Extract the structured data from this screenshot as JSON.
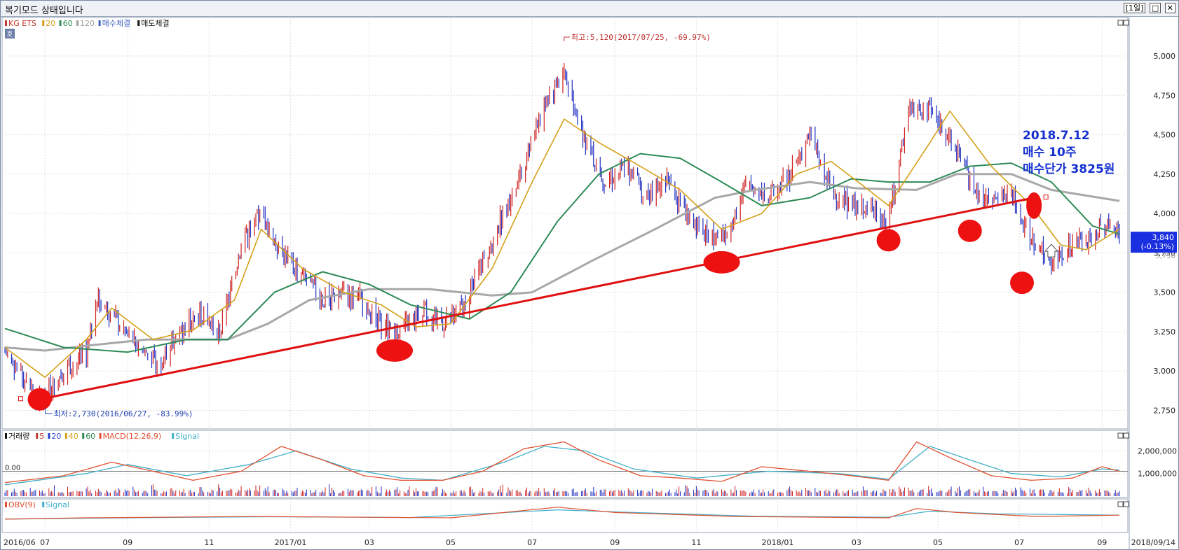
{
  "window": {
    "title": "복기모드 상태입니다",
    "period_button": "[1일]",
    "restore_icon": "restore-icon",
    "close_icon": "close-icon"
  },
  "price_legend": [
    {
      "label": "KG ETS",
      "color": "#c0392b"
    },
    {
      "label": "20",
      "color": "#d4a017"
    },
    {
      "label": "60",
      "color": "#2e8b57"
    },
    {
      "label": "120",
      "color": "#a0a0a0"
    },
    {
      "label": "매수체결",
      "color": "#4060c0"
    },
    {
      "label": "매도체결",
      "color": "#111111"
    }
  ],
  "price_legend_extra": "호",
  "volume_legend": [
    {
      "label": "거래량",
      "color": "#111111"
    },
    {
      "label": "5",
      "color": "#c0392b"
    },
    {
      "label": "20",
      "color": "#2b3fd6"
    },
    {
      "label": "40",
      "color": "#d4a017"
    },
    {
      "label": "60",
      "color": "#2e8b57"
    },
    {
      "label": "MACD(12,26,9)",
      "color": "#e05030"
    },
    {
      "label": "Signal",
      "color": "#40b0c8"
    }
  ],
  "obv_legend": [
    {
      "label": "OBV(9)",
      "color": "#e05030"
    },
    {
      "label": "Signal",
      "color": "#40b0c8"
    }
  ],
  "macd_zero_label": "0.00",
  "chart_data": {
    "type": "candlestick",
    "date_range": [
      "2016/06/01",
      "2018/09/14"
    ],
    "ylim": [
      2650,
      5200
    ],
    "yticks": [
      2750,
      3000,
      3250,
      3500,
      3750,
      4000,
      4250,
      4500,
      4750,
      5000
    ],
    "ytick_labels": [
      "2,750",
      "3,000",
      "3,250",
      "3,500",
      "3,750",
      "4,000",
      "4,250",
      "4,500",
      "4,750",
      "5,000"
    ],
    "x_labels": [
      {
        "date": "2016/06/01",
        "label": "2016/06"
      },
      {
        "date": "2016/07/01",
        "label": "07"
      },
      {
        "date": "2016/09/01",
        "label": "09"
      },
      {
        "date": "2016/11/01",
        "label": "11"
      },
      {
        "date": "2017/01/01",
        "label": "2017/01"
      },
      {
        "date": "2017/03/01",
        "label": "03"
      },
      {
        "date": "2017/05/01",
        "label": "05"
      },
      {
        "date": "2017/07/01",
        "label": "07"
      },
      {
        "date": "2017/09/01",
        "label": "09"
      },
      {
        "date": "2017/11/01",
        "label": "11"
      },
      {
        "date": "2018/01/01",
        "label": "2018/01"
      },
      {
        "date": "2018/03/01",
        "label": "03"
      },
      {
        "date": "2018/05/01",
        "label": "05"
      },
      {
        "date": "2018/07/01",
        "label": "07"
      },
      {
        "date": "2018/09/01",
        "label": "09"
      },
      {
        "date": "2018/09/14",
        "label": "2018/09/14"
      }
    ],
    "price_path": [
      [
        "2016/06/01",
        3120
      ],
      [
        "2016/06/27",
        2800
      ],
      [
        "2016/07/15",
        3000
      ],
      [
        "2016/08/01",
        3100
      ],
      [
        "2016/08/10",
        3450
      ],
      [
        "2016/08/25",
        3300
      ],
      [
        "2016/09/10",
        3150
      ],
      [
        "2016/09/25",
        3050
      ],
      [
        "2016/10/10",
        3250
      ],
      [
        "2016/10/25",
        3350
      ],
      [
        "2016/11/10",
        3250
      ],
      [
        "2016/11/25",
        3800
      ],
      [
        "2016/12/10",
        4000
      ],
      [
        "2016/12/25",
        3750
      ],
      [
        "2017/01/10",
        3600
      ],
      [
        "2017/01/25",
        3450
      ],
      [
        "2017/02/10",
        3500
      ],
      [
        "2017/02/25",
        3450
      ],
      [
        "2017/03/10",
        3300
      ],
      [
        "2017/03/25",
        3250
      ],
      [
        "2017/04/10",
        3400
      ],
      [
        "2017/04/25",
        3300
      ],
      [
        "2017/05/10",
        3400
      ],
      [
        "2017/05/25",
        3700
      ],
      [
        "2017/06/10",
        4000
      ],
      [
        "2017/06/25",
        4300
      ],
      [
        "2017/07/10",
        4700
      ],
      [
        "2017/07/25",
        4900
      ],
      [
        "2017/08/10",
        4450
      ],
      [
        "2017/08/25",
        4200
      ],
      [
        "2017/09/10",
        4300
      ],
      [
        "2017/09/25",
        4100
      ],
      [
        "2017/10/10",
        4200
      ],
      [
        "2017/10/25",
        4000
      ],
      [
        "2017/11/10",
        3850
      ],
      [
        "2017/11/25",
        3900
      ],
      [
        "2017/12/10",
        4200
      ],
      [
        "2017/12/25",
        4100
      ],
      [
        "2018/01/10",
        4250
      ],
      [
        "2018/01/25",
        4500
      ],
      [
        "2018/02/10",
        4150
      ],
      [
        "2018/02/25",
        4050
      ],
      [
        "2018/03/10",
        4050
      ],
      [
        "2018/03/25",
        3950
      ],
      [
        "2018/04/10",
        4700
      ],
      [
        "2018/04/25",
        4650
      ],
      [
        "2018/05/10",
        4500
      ],
      [
        "2018/05/25",
        4200
      ],
      [
        "2018/06/10",
        4050
      ],
      [
        "2018/06/25",
        4150
      ],
      [
        "2018/07/05",
        3900
      ],
      [
        "2018/07/15",
        3800
      ],
      [
        "2018/07/25",
        3700
      ],
      [
        "2018/08/10",
        3800
      ],
      [
        "2018/08/25",
        3850
      ],
      [
        "2018/09/05",
        3950
      ],
      [
        "2018/09/14",
        3840
      ]
    ],
    "ma20": [
      [
        "2016/06/01",
        3150
      ],
      [
        "2016/07/01",
        2960
      ],
      [
        "2016/08/01",
        3200
      ],
      [
        "2016/08/20",
        3400
      ],
      [
        "2016/09/20",
        3200
      ],
      [
        "2016/10/20",
        3260
      ],
      [
        "2016/11/20",
        3450
      ],
      [
        "2016/12/10",
        3900
      ],
      [
        "2017/01/10",
        3650
      ],
      [
        "2017/02/10",
        3500
      ],
      [
        "2017/03/10",
        3420
      ],
      [
        "2017/04/05",
        3280
      ],
      [
        "2017/05/01",
        3300
      ],
      [
        "2017/06/01",
        3650
      ],
      [
        "2017/07/01",
        4200
      ],
      [
        "2017/07/25",
        4600
      ],
      [
        "2017/08/20",
        4450
      ],
      [
        "2017/09/20",
        4300
      ],
      [
        "2017/10/20",
        4150
      ],
      [
        "2017/11/20",
        3900
      ],
      [
        "2017/12/20",
        4000
      ],
      [
        "2018/01/15",
        4250
      ],
      [
        "2018/02/10",
        4330
      ],
      [
        "2018/03/10",
        4150
      ],
      [
        "2018/03/25",
        4050
      ],
      [
        "2018/04/25",
        4450
      ],
      [
        "2018/05/10",
        4650
      ],
      [
        "2018/06/10",
        4300
      ],
      [
        "2018/07/10",
        4050
      ],
      [
        "2018/08/01",
        3800
      ],
      [
        "2018/08/20",
        3770
      ],
      [
        "2018/09/14",
        3900
      ]
    ],
    "ma60": [
      [
        "2016/06/01",
        3270
      ],
      [
        "2016/07/15",
        3150
      ],
      [
        "2016/09/01",
        3120
      ],
      [
        "2016/10/15",
        3200
      ],
      [
        "2016/11/15",
        3200
      ],
      [
        "2016/12/20",
        3500
      ],
      [
        "2017/01/25",
        3630
      ],
      [
        "2017/03/01",
        3550
      ],
      [
        "2017/04/01",
        3420
      ],
      [
        "2017/05/15",
        3330
      ],
      [
        "2017/06/15",
        3500
      ],
      [
        "2017/07/20",
        3950
      ],
      [
        "2017/08/20",
        4250
      ],
      [
        "2017/09/20",
        4380
      ],
      [
        "2017/10/20",
        4350
      ],
      [
        "2017/11/20",
        4200
      ],
      [
        "2017/12/20",
        4050
      ],
      [
        "2018/01/25",
        4100
      ],
      [
        "2018/02/25",
        4220
      ],
      [
        "2018/03/25",
        4200
      ],
      [
        "2018/04/25",
        4200
      ],
      [
        "2018/05/25",
        4300
      ],
      [
        "2018/06/25",
        4320
      ],
      [
        "2018/07/25",
        4200
      ],
      [
        "2018/08/25",
        3920
      ],
      [
        "2018/09/14",
        3870
      ]
    ],
    "ma120": [
      [
        "2016/06/01",
        3150
      ],
      [
        "2016/07/01",
        3130
      ],
      [
        "2016/08/01",
        3160
      ],
      [
        "2016/09/15",
        3200
      ],
      [
        "2016/11/15",
        3200
      ],
      [
        "2016/12/15",
        3300
      ],
      [
        "2017/01/15",
        3450
      ],
      [
        "2017/03/01",
        3520
      ],
      [
        "2017/04/15",
        3520
      ],
      [
        "2017/06/01",
        3480
      ],
      [
        "2017/07/01",
        3500
      ],
      [
        "2017/08/15",
        3700
      ],
      [
        "2017/10/01",
        3900
      ],
      [
        "2017/11/15",
        4100
      ],
      [
        "2017/12/15",
        4150
      ],
      [
        "2018/01/25",
        4200
      ],
      [
        "2018/03/01",
        4160
      ],
      [
        "2018/04/15",
        4150
      ],
      [
        "2018/05/15",
        4250
      ],
      [
        "2018/06/25",
        4250
      ],
      [
        "2018/07/25",
        4150
      ],
      [
        "2018/09/14",
        4080
      ]
    ],
    "trendline": [
      [
        "2016/06/27",
        2820
      ],
      [
        "2018/07/12",
        4100
      ]
    ],
    "markers": [
      {
        "date": "2016/06/27",
        "price": 2820
      },
      {
        "date": "2017/03/20",
        "price": 3130
      },
      {
        "date": "2017/11/20",
        "price": 3690
      },
      {
        "date": "2018/03/25",
        "price": 3830
      },
      {
        "date": "2018/05/25",
        "price": 3890
      },
      {
        "date": "2018/07/03",
        "price": 3560
      },
      {
        "date": "2018/07/12",
        "price": 4050
      }
    ],
    "high_annotation": {
      "date": "2017/07/25",
      "price": 5120,
      "label": "최고:5,120(2017/07/25, -69.97%)"
    },
    "low_annotation": {
      "date": "2016/06/27",
      "price": 2730,
      "label": "최저:2,730(2016/06/27, -83.99%)"
    },
    "trade_note": {
      "date": "2018/07/12",
      "lines": [
        "2018.7.12",
        "매수 10주",
        "매수단가 3825원"
      ]
    },
    "current_price": {
      "value": 3840,
      "label": "3,840",
      "change": "(-0.13%)",
      "next_tick": "3,750"
    },
    "volume_ylim": [
      0,
      2600000
    ],
    "volume_yticks": [
      1000000,
      2000000
    ],
    "volume_ytick_labels": [
      "1,000,000",
      "2,000,000"
    ],
    "macd_line": [
      [
        "2016/06/01",
        600000
      ],
      [
        "2016/07/15",
        900000
      ],
      [
        "2016/08/20",
        1500000
      ],
      [
        "2016/09/20",
        1100000
      ],
      [
        "2016/10/20",
        700000
      ],
      [
        "2016/11/25",
        1100000
      ],
      [
        "2016/12/25",
        2200000
      ],
      [
        "2017/01/25",
        1600000
      ],
      [
        "2017/02/25",
        900000
      ],
      [
        "2017/03/25",
        700000
      ],
      [
        "2017/04/25",
        700000
      ],
      [
        "2017/05/25",
        1100000
      ],
      [
        "2017/06/25",
        2100000
      ],
      [
        "2017/07/25",
        2400000
      ],
      [
        "2017/08/20",
        1600000
      ],
      [
        "2017/09/20",
        900000
      ],
      [
        "2017/10/20",
        800000
      ],
      [
        "2017/11/20",
        650000
      ],
      [
        "2017/12/20",
        1300000
      ],
      [
        "2018/01/25",
        1100000
      ],
      [
        "2018/02/25",
        900000
      ],
      [
        "2018/03/25",
        700000
      ],
      [
        "2018/04/15",
        2400000
      ],
      [
        "2018/05/10",
        1700000
      ],
      [
        "2018/06/10",
        900000
      ],
      [
        "2018/07/10",
        700000
      ],
      [
        "2018/08/10",
        800000
      ],
      [
        "2018/09/01",
        1300000
      ],
      [
        "2018/09/14",
        1100000
      ]
    ],
    "macd_signal": [
      [
        "2016/06/01",
        500000
      ],
      [
        "2016/08/01",
        1000000
      ],
      [
        "2016/09/01",
        1400000
      ],
      [
        "2016/10/15",
        900000
      ],
      [
        "2016/12/01",
        1400000
      ],
      [
        "2017/01/05",
        2000000
      ],
      [
        "2017/02/15",
        1200000
      ],
      [
        "2017/03/25",
        800000
      ],
      [
        "2017/04/25",
        700000
      ],
      [
        "2017/06/10",
        1500000
      ],
      [
        "2017/07/10",
        2200000
      ],
      [
        "2017/08/10",
        2000000
      ],
      [
        "2017/09/15",
        1200000
      ],
      [
        "2017/11/01",
        800000
      ],
      [
        "2017/12/25",
        1100000
      ],
      [
        "2018/02/15",
        1000000
      ],
      [
        "2018/03/25",
        750000
      ],
      [
        "2018/04/25",
        2200000
      ],
      [
        "2018/05/25",
        1600000
      ],
      [
        "2018/06/25",
        1000000
      ],
      [
        "2018/08/01",
        850000
      ],
      [
        "2018/09/01",
        1200000
      ],
      [
        "2018/09/14",
        1150000
      ]
    ],
    "obv_line": [
      [
        "2016/06/01",
        0.45
      ],
      [
        "2016/08/01",
        0.5
      ],
      [
        "2016/12/01",
        0.55
      ],
      [
        "2017/03/01",
        0.52
      ],
      [
        "2017/05/01",
        0.5
      ],
      [
        "2017/07/20",
        0.9
      ],
      [
        "2017/09/01",
        0.7
      ],
      [
        "2017/12/01",
        0.55
      ],
      [
        "2018/03/25",
        0.5
      ],
      [
        "2018/04/15",
        0.85
      ],
      [
        "2018/05/15",
        0.7
      ],
      [
        "2018/07/15",
        0.55
      ],
      [
        "2018/09/14",
        0.6
      ]
    ],
    "obv_signal": [
      [
        "2016/06/01",
        0.45
      ],
      [
        "2016/09/01",
        0.5
      ],
      [
        "2016/12/15",
        0.54
      ],
      [
        "2017/04/01",
        0.51
      ],
      [
        "2017/07/20",
        0.8
      ],
      [
        "2017/09/15",
        0.7
      ],
      [
        "2017/12/15",
        0.56
      ],
      [
        "2018/03/25",
        0.52
      ],
      [
        "2018/04/25",
        0.75
      ],
      [
        "2018/06/15",
        0.65
      ],
      [
        "2018/09/14",
        0.6
      ]
    ]
  }
}
